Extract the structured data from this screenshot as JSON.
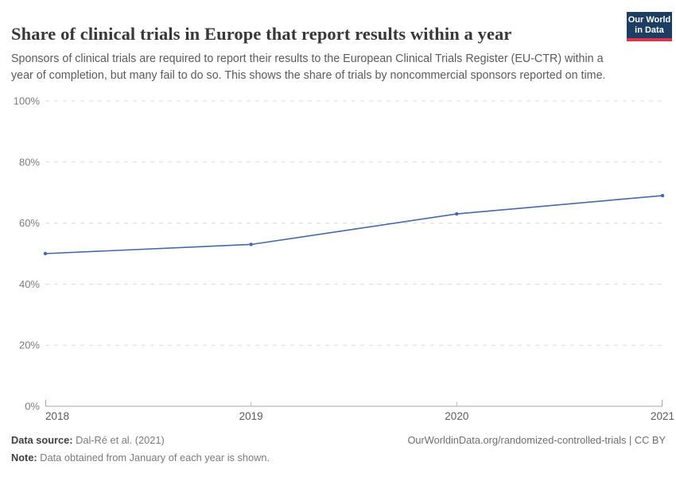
{
  "header": {
    "title": "Share of clinical trials in Europe that report results within a year",
    "subtitle": "Sponsors of clinical trials are required to report their results to the European Clinical Trials Register (EU-CTR) within a year of completion, but many fail to do so. This shows the share of trials by noncommercial sponsors reported on time.",
    "logo": {
      "line1": "Our World",
      "line2": "in Data",
      "bg_color": "#1d3d63",
      "accent_color": "#dc354a"
    }
  },
  "chart_data": {
    "type": "line",
    "title": "Share of clinical trials in Europe that report results within a year",
    "x": [
      2018,
      2019,
      2020,
      2021
    ],
    "series": [
      {
        "name": "Share of trials by noncommercial sponsors reported on time",
        "values": [
          50,
          53,
          63,
          69
        ],
        "color": "#4669a5"
      }
    ],
    "xlabel": "",
    "ylabel": "",
    "ylim": [
      0,
      100
    ],
    "yticks": [
      0,
      20,
      40,
      60,
      80,
      100
    ],
    "ytick_suffix": "%",
    "xticks": [
      2018,
      2019,
      2020,
      2021
    ],
    "grid": true,
    "gridline_style": "dashed",
    "legend": "none",
    "colors": {
      "line": "#4669a5",
      "gridline": "#dcdcdc",
      "axis": "#a6a6a6",
      "tick": "#bdbdbd",
      "ytick_label": "#7c7c7c",
      "xtick_label": "#5a5a5a"
    }
  },
  "footer": {
    "source_label": "Data source:",
    "source_value": " Dal-Ré et al. (2021)",
    "note_label": "Note:",
    "note_value": " Data obtained from January of each year is shown.",
    "link": "OurWorldinData.org/randomized-controlled-trials | CC BY"
  }
}
